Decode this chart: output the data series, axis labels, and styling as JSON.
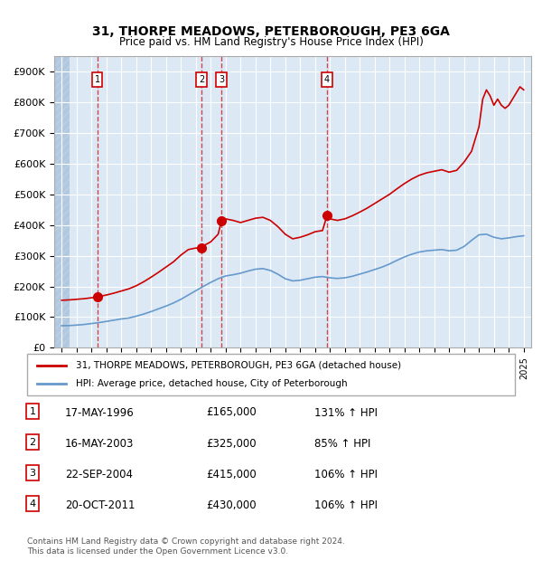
{
  "title1": "31, THORPE MEADOWS, PETERBOROUGH, PE3 6GA",
  "title2": "Price paid vs. HM Land Registry's House Price Index (HPI)",
  "ylabel": "",
  "ylim": [
    0,
    950000
  ],
  "yticks": [
    0,
    100000,
    200000,
    300000,
    400000,
    500000,
    600000,
    700000,
    800000,
    900000
  ],
  "ytick_labels": [
    "£0",
    "£100K",
    "£200K",
    "£300K",
    "£400K",
    "£500K",
    "£600K",
    "£700K",
    "£800K",
    "£900K"
  ],
  "xlim_start": 1993.5,
  "xlim_end": 2025.5,
  "hatch_end": 1994.5,
  "bg_color": "#dce9f5",
  "hatch_color": "#b0c8e0",
  "grid_color": "#ffffff",
  "sale_dates": [
    1996.38,
    2003.38,
    2004.73,
    2011.8
  ],
  "sale_prices": [
    165000,
    325000,
    415000,
    430000
  ],
  "sale_labels": [
    "1",
    "2",
    "3",
    "4"
  ],
  "hpi_years": [
    1994,
    1994.5,
    1995,
    1995.5,
    1996,
    1996.5,
    1997,
    1997.5,
    1998,
    1998.5,
    1999,
    1999.5,
    2000,
    2000.5,
    2001,
    2001.5,
    2002,
    2002.5,
    2003,
    2003.5,
    2004,
    2004.5,
    2005,
    2005.5,
    2006,
    2006.5,
    2007,
    2007.5,
    2008,
    2008.5,
    2009,
    2009.5,
    2010,
    2010.5,
    2011,
    2011.5,
    2012,
    2012.5,
    2013,
    2013.5,
    2014,
    2014.5,
    2015,
    2015.5,
    2016,
    2016.5,
    2017,
    2017.5,
    2018,
    2018.5,
    2019,
    2019.5,
    2020,
    2020.5,
    2021,
    2021.5,
    2022,
    2022.5,
    2023,
    2023.5,
    2024,
    2024.5,
    2025
  ],
  "hpi_values": [
    72000,
    72500,
    74000,
    76000,
    79000,
    82000,
    86000,
    90000,
    94000,
    97000,
    103000,
    110000,
    118000,
    127000,
    136000,
    146000,
    158000,
    172000,
    186000,
    200000,
    213000,
    225000,
    234000,
    238000,
    243000,
    250000,
    256000,
    258000,
    252000,
    240000,
    225000,
    218000,
    220000,
    225000,
    230000,
    232000,
    228000,
    226000,
    228000,
    233000,
    240000,
    247000,
    255000,
    263000,
    273000,
    285000,
    296000,
    305000,
    312000,
    316000,
    318000,
    320000,
    316000,
    318000,
    330000,
    350000,
    368000,
    370000,
    360000,
    355000,
    358000,
    362000,
    365000
  ],
  "price_years": [
    1994,
    1994.5,
    1995,
    1995.5,
    1996,
    1996.38,
    1996.5,
    1997,
    1997.5,
    1998,
    1998.5,
    1999,
    1999.5,
    2000,
    2000.5,
    2001,
    2001.5,
    2002,
    2002.5,
    2003,
    2003.38,
    2003.5,
    2004,
    2004.5,
    2004.73,
    2005,
    2005.5,
    2006,
    2006.5,
    2007,
    2007.5,
    2008,
    2008.5,
    2009,
    2009.5,
    2010,
    2010.5,
    2011,
    2011.5,
    2011.8,
    2012,
    2012.5,
    2013,
    2013.5,
    2014,
    2014.5,
    2015,
    2015.5,
    2016,
    2016.5,
    2017,
    2017.5,
    2018,
    2018.5,
    2019,
    2019.5,
    2020,
    2020.5,
    2021,
    2021.5,
    2022,
    2022.25,
    2022.5,
    2022.75,
    2023,
    2023.25,
    2023.5,
    2023.75,
    2024,
    2024.25,
    2024.5,
    2024.75,
    2025
  ],
  "price_values": [
    155000,
    156000,
    158000,
    160000,
    163000,
    165000,
    167000,
    172000,
    178000,
    185000,
    192000,
    202000,
    215000,
    230000,
    246000,
    263000,
    280000,
    302000,
    320000,
    325000,
    325000,
    332000,
    345000,
    370000,
    415000,
    420000,
    415000,
    408000,
    415000,
    422000,
    425000,
    415000,
    395000,
    370000,
    355000,
    360000,
    368000,
    378000,
    382000,
    430000,
    420000,
    415000,
    420000,
    430000,
    442000,
    455000,
    470000,
    485000,
    500000,
    518000,
    535000,
    550000,
    562000,
    570000,
    575000,
    580000,
    572000,
    578000,
    605000,
    640000,
    720000,
    810000,
    840000,
    820000,
    790000,
    810000,
    790000,
    780000,
    790000,
    810000,
    830000,
    850000,
    840000
  ],
  "legend_line1": "31, THORPE MEADOWS, PETERBOROUGH, PE3 6GA (detached house)",
  "legend_line2": "HPI: Average price, detached house, City of Peterborough",
  "table_data": [
    {
      "num": "1",
      "date": "17-MAY-1996",
      "price": "£165,000",
      "hpi": "131% ↑ HPI"
    },
    {
      "num": "2",
      "date": "16-MAY-2003",
      "price": "£325,000",
      "hpi": "85% ↑ HPI"
    },
    {
      "num": "3",
      "date": "22-SEP-2004",
      "price": "£415,000",
      "hpi": "106% ↑ HPI"
    },
    {
      "num": "4",
      "date": "20-OCT-2011",
      "price": "£430,000",
      "hpi": "106% ↑ HPI"
    }
  ],
  "footer": "Contains HM Land Registry data © Crown copyright and database right 2024.\nThis data is licensed under the Open Government Licence v3.0.",
  "red_line_color": "#cc0000",
  "blue_line_color": "#6699cc",
  "vline_color": "#cc0000",
  "sale_box_color": "#cc0000"
}
